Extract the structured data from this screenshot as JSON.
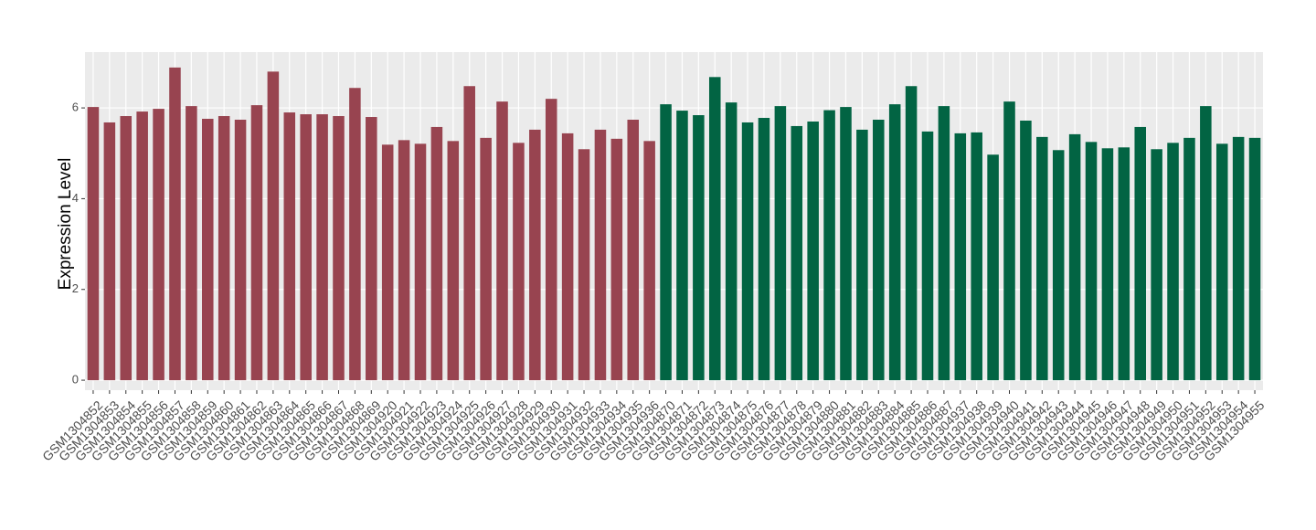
{
  "chart_data": {
    "type": "bar",
    "y_label": "Expression Level",
    "categories": [
      "GSM1304852",
      "GSM1304853",
      "GSM1304854",
      "GSM1304855",
      "GSM1304856",
      "GSM1304857",
      "GSM1304858",
      "GSM1304859",
      "GSM1304860",
      "GSM1304861",
      "GSM1304862",
      "GSM1304863",
      "GSM1304864",
      "GSM1304865",
      "GSM1304866",
      "GSM1304867",
      "GSM1304868",
      "GSM1304869",
      "GSM1304920",
      "GSM1304921",
      "GSM1304922",
      "GSM1304923",
      "GSM1304924",
      "GSM1304925",
      "GSM1304926",
      "GSM1304927",
      "GSM1304928",
      "GSM1304929",
      "GSM1304930",
      "GSM1304931",
      "GSM1304932",
      "GSM1304933",
      "GSM1304934",
      "GSM1304935",
      "GSM1304936",
      "GSM1304870",
      "GSM1304871",
      "GSM1304872",
      "GSM1304873",
      "GSM1304874",
      "GSM1304875",
      "GSM1304876",
      "GSM1304877",
      "GSM1304878",
      "GSM1304879",
      "GSM1304880",
      "GSM1304881",
      "GSM1304882",
      "GSM1304883",
      "GSM1304884",
      "GSM1304885",
      "GSM1304886",
      "GSM1304887",
      "GSM1304937",
      "GSM1304938",
      "GSM1304939",
      "GSM1304940",
      "GSM1304941",
      "GSM1304942",
      "GSM1304943",
      "GSM1304944",
      "GSM1304945",
      "GSM1304946",
      "GSM1304947",
      "GSM1304948",
      "GSM1304949",
      "GSM1304950",
      "GSM1304951",
      "GSM1304952",
      "GSM1304953",
      "GSM1304954",
      "GSM1304955"
    ],
    "values": [
      6.02,
      5.68,
      5.82,
      5.92,
      5.98,
      6.89,
      6.04,
      5.76,
      5.82,
      5.74,
      6.06,
      6.8,
      5.9,
      5.86,
      5.86,
      5.82,
      6.44,
      5.8,
      5.19,
      5.29,
      5.21,
      5.58,
      5.27,
      6.48,
      5.34,
      6.14,
      5.23,
      5.52,
      6.2,
      5.44,
      5.09,
      5.52,
      5.32,
      5.74,
      5.27,
      6.08,
      5.94,
      5.84,
      6.68,
      6.12,
      5.68,
      5.78,
      6.04,
      5.6,
      5.7,
      5.95,
      6.02,
      5.52,
      5.74,
      6.08,
      6.48,
      5.48,
      6.04,
      5.44,
      5.46,
      4.97,
      6.14,
      5.72,
      5.36,
      5.07,
      5.42,
      5.25,
      5.11,
      5.13,
      5.58,
      5.09,
      5.23,
      5.34,
      6.04,
      5.21,
      5.36,
      5.34
    ],
    "colors": [
      "#984450",
      "#984450",
      "#984450",
      "#984450",
      "#984450",
      "#984450",
      "#984450",
      "#984450",
      "#984450",
      "#984450",
      "#984450",
      "#984450",
      "#984450",
      "#984450",
      "#984450",
      "#984450",
      "#984450",
      "#984450",
      "#984450",
      "#984450",
      "#984450",
      "#984450",
      "#984450",
      "#984450",
      "#984450",
      "#984450",
      "#984450",
      "#984450",
      "#984450",
      "#984450",
      "#984450",
      "#984450",
      "#984450",
      "#984450",
      "#984450",
      "#026443",
      "#026443",
      "#026443",
      "#026443",
      "#026443",
      "#026443",
      "#026443",
      "#026443",
      "#026443",
      "#026443",
      "#026443",
      "#026443",
      "#026443",
      "#026443",
      "#026443",
      "#026443",
      "#026443",
      "#026443",
      "#026443",
      "#026443",
      "#026443",
      "#026443",
      "#026443",
      "#026443",
      "#026443",
      "#026443",
      "#026443",
      "#026443",
      "#026443",
      "#026443",
      "#026443",
      "#026443",
      "#026443",
      "#026443",
      "#026443",
      "#026443",
      "#026443"
    ],
    "ylim": [
      -0.22,
      7.23
    ],
    "yticks": [
      0,
      2,
      4,
      6
    ],
    "grid": true
  }
}
